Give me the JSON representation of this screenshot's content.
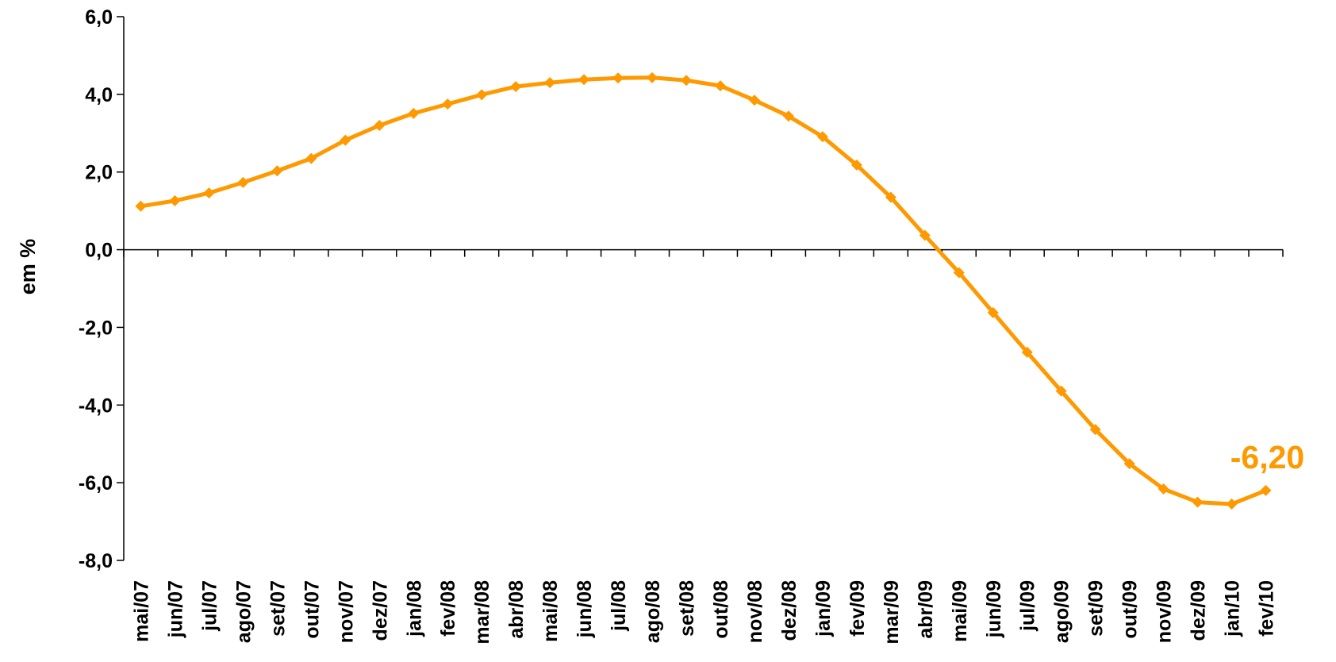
{
  "chart_data": {
    "type": "line",
    "title": "",
    "xlabel": "",
    "ylabel": "em %",
    "ylim": [
      -8,
      6
    ],
    "yticks": [
      6,
      4,
      2,
      0,
      -2,
      -4,
      -6,
      -8
    ],
    "ytick_labels": [
      "6,0",
      "4,0",
      "2,0",
      "0,0",
      "-2,0",
      "-4,0",
      "-6,0",
      "-8,0"
    ],
    "grid": false,
    "legend": "none",
    "categories": [
      "mai/07",
      "jun/07",
      "jul/07",
      "ago/07",
      "set/07",
      "out/07",
      "nov/07",
      "dez/07",
      "jan/08",
      "fev/08",
      "mar/08",
      "abr/08",
      "mai/08",
      "jun/08",
      "jul/08",
      "ago/08",
      "set/08",
      "out/08",
      "nov/08",
      "dez/08",
      "jan/09",
      "fev/09",
      "mar/09",
      "abr/09",
      "mai/09",
      "jun/09",
      "jul/09",
      "ago/09",
      "set/09",
      "out/09",
      "nov/09",
      "dez/09",
      "jan/10",
      "fev/10"
    ],
    "series": [
      {
        "color": "#FF9900",
        "values": [
          1.12,
          1.26,
          1.46,
          1.73,
          2.03,
          2.35,
          2.82,
          3.2,
          3.51,
          3.75,
          3.99,
          4.2,
          4.3,
          4.38,
          4.42,
          4.43,
          4.36,
          4.22,
          3.85,
          3.44,
          2.91,
          2.18,
          1.35,
          0.37,
          -0.59,
          -1.62,
          -2.64,
          -3.64,
          -4.63,
          -5.51,
          -6.16,
          -6.5,
          -6.55,
          -6.2
        ]
      }
    ],
    "annotations": [
      {
        "text": "-6,20",
        "category": "fev/10",
        "value": -6.2,
        "color": "#FF9900"
      }
    ]
  }
}
